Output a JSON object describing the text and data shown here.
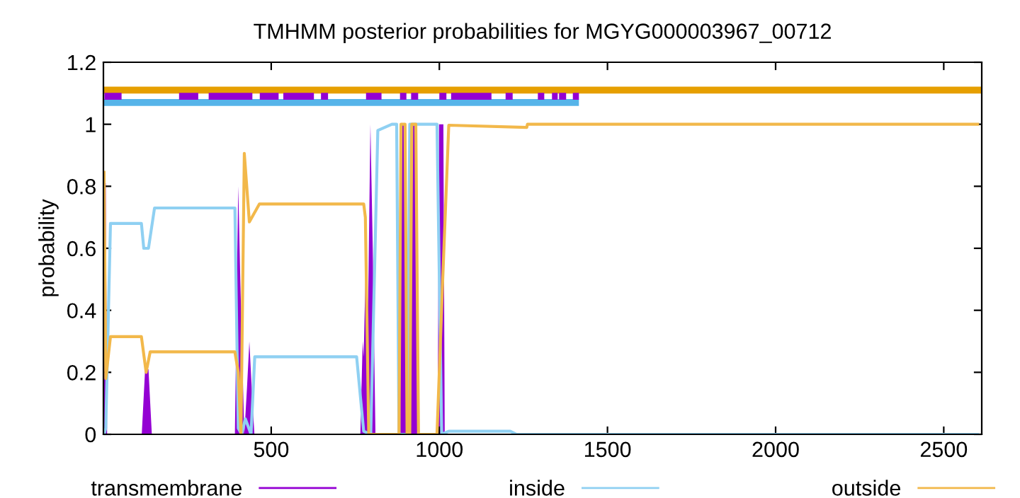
{
  "chart_data": {
    "type": "line",
    "title": "TMHMM posterior probabilities for MGYG000003967_00712",
    "ylabel": "probability",
    "xlim": [
      1,
      2613
    ],
    "ylim": [
      0,
      1.2
    ],
    "xticks": [
      500,
      1000,
      1500,
      2000,
      2500
    ],
    "yticks": [
      0,
      0.2,
      0.4,
      0.6,
      0.8,
      1,
      1.2
    ],
    "grid": false,
    "legend": "bottom",
    "series": [
      {
        "name": "transmembrane",
        "type": "area",
        "color": "#9400d3",
        "x": [
          1,
          3,
          8,
          12,
          115,
          125,
          130,
          135,
          145,
          392,
          398,
          402,
          408,
          420,
          428,
          435,
          442,
          450,
          765,
          772,
          775,
          782,
          788,
          795,
          802,
          810,
          880,
          884,
          890,
          898,
          903,
          910,
          914,
          920,
          930,
          936,
          995,
          999,
          1005,
          1012,
          1016,
          2613
        ],
        "values": [
          0,
          0.81,
          0.81,
          0,
          0,
          0.21,
          0.21,
          0.21,
          0,
          0,
          0.5,
          0.8,
          0.5,
          0,
          0.15,
          0.3,
          0.15,
          0,
          0,
          0.3,
          0.25,
          0.6,
          0.4,
          1,
          0.6,
          0,
          0,
          1,
          1,
          1,
          0,
          0,
          1,
          1,
          1,
          0,
          0,
          1,
          1,
          1,
          0,
          0
        ]
      },
      {
        "name": "inside",
        "type": "line",
        "color": "#8fd0f2",
        "x": [
          3,
          8,
          22,
          114,
          121,
          135,
          153,
          392,
          402,
          412,
          423,
          440,
          451,
          754,
          775,
          796,
          817,
          859,
          873,
          880,
          905,
          912,
          937,
          993,
          1007,
          1028,
          1211,
          1230,
          2605
        ],
        "values": [
          0,
          0.02,
          0.68,
          0.68,
          0.6,
          0.6,
          0.73,
          0.73,
          0.02,
          0,
          0.05,
          0,
          0.25,
          0.25,
          0.01,
          0,
          0.98,
          1,
          1,
          0,
          0,
          1,
          1,
          1,
          0,
          0.01,
          0.01,
          0,
          0
        ]
      },
      {
        "name": "outside",
        "type": "line",
        "color": "#f2b84a",
        "x": [
          3,
          8,
          22,
          114,
          128,
          140,
          392,
          402,
          410,
          420,
          435,
          465,
          775,
          780,
          790,
          880,
          886,
          898,
          904,
          912,
          918,
          930,
          938,
          993,
          1010,
          1028,
          1260,
          1262,
          2605
        ],
        "values": [
          0.85,
          0.18,
          0.315,
          0.315,
          0.2,
          0.266,
          0.266,
          0.2,
          0,
          0.906,
          0.685,
          0.743,
          0.743,
          0.7,
          0,
          0,
          1,
          1,
          0,
          0,
          1,
          1,
          0,
          0,
          0.5,
          0.997,
          0.99,
          1,
          1
        ]
      },
      {
        "color": "#56b4e9",
        "x": [
          1,
          1415
        ],
        "values": [
          1.07,
          1.07
        ]
      },
      {
        "color": "#e69f00",
        "x": [
          1,
          2613
        ],
        "values": [
          1.11,
          1.11
        ]
      },
      {
        "color": "#9400d3",
        "x": [
          4,
          55,
          null,
          226,
          283,
          null,
          314,
          444,
          null,
          466,
          522,
          null,
          536,
          627,
          null,
          648,
          669,
          null,
          782,
          828,
          null,
          883,
          902,
          null,
          916,
          937,
          null,
          1000,
          1021,
          null,
          1035,
          1155,
          null,
          1197,
          1218,
          null,
          1293,
          1312,
          null,
          1335,
          1352,
          null,
          1356,
          1377,
          null,
          1397,
          1415
        ],
        "values": [
          1.09,
          1.09,
          null,
          1.09,
          1.09,
          null,
          1.09,
          1.09,
          null,
          1.09,
          1.09,
          null,
          1.09,
          1.09,
          null,
          1.09,
          1.09,
          null,
          1.09,
          1.09,
          null,
          1.09,
          1.09,
          null,
          1.09,
          1.09,
          null,
          1.09,
          1.09,
          null,
          1.09,
          1.09,
          null,
          1.09,
          1.09,
          null,
          1.09,
          1.09,
          null,
          1.09,
          1.09,
          null,
          1.09,
          1.09,
          null,
          1.09,
          1.09
        ]
      }
    ]
  }
}
